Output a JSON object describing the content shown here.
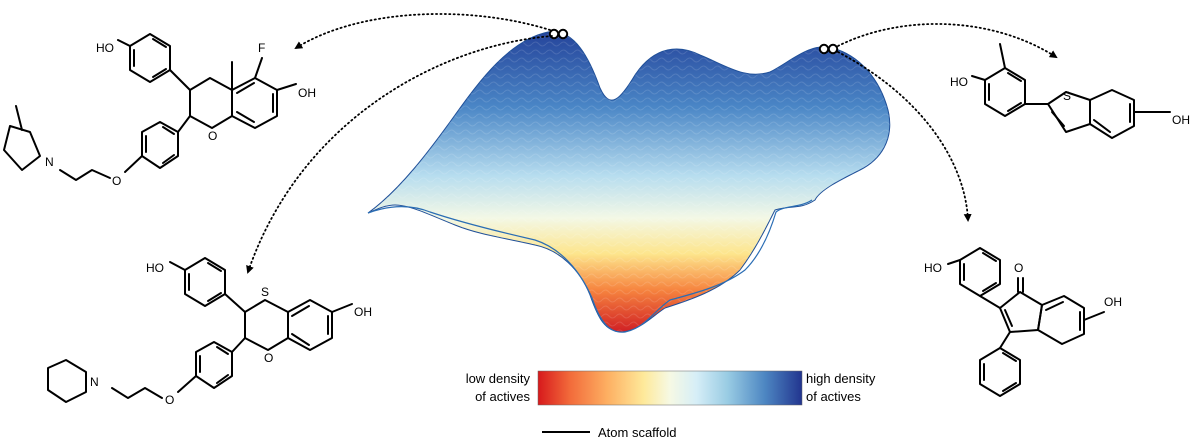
{
  "colorbar": {
    "low_label_line1": "low density",
    "low_label_line2": "of actives",
    "high_label_line1": "high density",
    "high_label_line2": "of actives",
    "colors": [
      "#d7191c",
      "#f26a3a",
      "#fdae61",
      "#fee99a",
      "#ffffbf",
      "#d6eef7",
      "#abd9e9",
      "#5f9fcf",
      "#2c5fa8",
      "#22358f"
    ]
  },
  "legend": {
    "scaffold_label": "Atom scaffold"
  },
  "surface": {
    "peak_left_markers": 2,
    "peak_right_markers": 2
  },
  "molecules": {
    "top_left": {
      "substituents": [
        "HO",
        "F",
        "OH",
        "O",
        "N",
        "O"
      ]
    },
    "bottom_left": {
      "substituents": [
        "HO",
        "S",
        "OH",
        "O",
        "N",
        "O"
      ]
    },
    "top_right": {
      "substituents": [
        "HO",
        "S",
        "OH"
      ]
    },
    "bottom_right": {
      "substituents": [
        "O",
        "HO",
        "OH"
      ]
    }
  }
}
